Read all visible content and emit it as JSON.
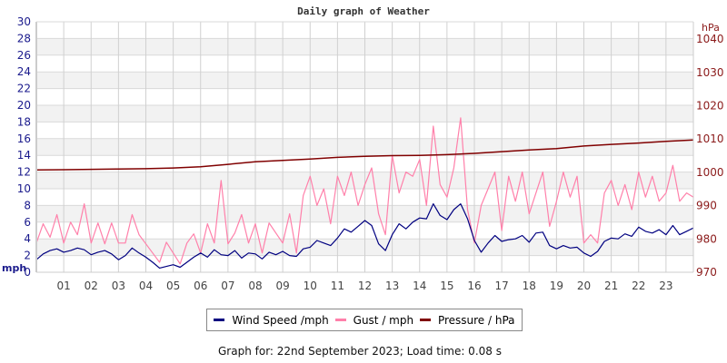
{
  "chart_data": {
    "type": "line",
    "title": "Daily graph of Weather",
    "xlabel": "",
    "ylabel": "mph",
    "ylabel_right": "hPa",
    "x_ticks": [
      "01",
      "02",
      "03",
      "04",
      "05",
      "06",
      "07",
      "08",
      "09",
      "10",
      "11",
      "12",
      "13",
      "14",
      "15",
      "16",
      "17",
      "18",
      "19",
      "20",
      "21",
      "22",
      "23"
    ],
    "y_ticks_left": [
      0,
      2,
      4,
      6,
      8,
      10,
      12,
      14,
      16,
      18,
      20,
      22,
      24,
      26,
      28,
      30
    ],
    "y_ticks_right": [
      970,
      980,
      990,
      1000,
      1010,
      1020,
      1030,
      1040
    ],
    "ylim": [
      0,
      30
    ],
    "ylim_right": [
      970,
      1040
    ],
    "xlim_hours": [
      0,
      24
    ],
    "grid": true,
    "legend_position": "bottom",
    "series": [
      {
        "name": "Wind Speed /mph",
        "color": "#000080",
        "axis": "left",
        "hours": [
          0,
          0.25,
          0.5,
          0.75,
          1,
          1.25,
          1.5,
          1.75,
          2,
          2.25,
          2.5,
          2.75,
          3,
          3.25,
          3.5,
          3.75,
          4,
          4.25,
          4.5,
          4.75,
          5,
          5.25,
          5.5,
          5.75,
          6,
          6.25,
          6.5,
          6.75,
          7,
          7.25,
          7.5,
          7.75,
          8,
          8.25,
          8.5,
          8.75,
          9,
          9.25,
          9.5,
          9.75,
          10,
          10.25,
          10.5,
          10.75,
          11,
          11.25,
          11.5,
          11.75,
          12,
          12.25,
          12.5,
          12.75,
          13,
          13.25,
          13.5,
          13.75,
          14,
          14.25,
          14.5,
          14.75,
          15,
          15.25,
          15.5,
          15.75,
          16,
          16.25,
          16.5,
          16.75,
          17,
          17.25,
          17.5,
          17.75,
          18,
          18.25,
          18.5,
          18.75,
          19,
          19.25,
          19.5,
          19.75,
          20,
          20.25,
          20.5,
          20.75,
          21,
          21.25,
          21.5,
          21.75,
          22,
          22.25,
          22.5,
          22.75,
          23,
          23.25,
          23.5,
          23.75,
          24
        ],
        "values": [
          1.5,
          2.2,
          2.6,
          2.8,
          2.4,
          2.6,
          2.9,
          2.7,
          2.1,
          2.4,
          2.6,
          2.2,
          1.5,
          2.0,
          2.9,
          2.3,
          1.8,
          1.2,
          0.5,
          0.7,
          0.9,
          0.6,
          1.2,
          1.8,
          2.3,
          1.8,
          2.7,
          2.1,
          2.0,
          2.6,
          1.7,
          2.3,
          2.2,
          1.6,
          2.4,
          2.1,
          2.5,
          2.0,
          1.9,
          2.8,
          3.0,
          3.8,
          3.5,
          3.2,
          4.1,
          5.2,
          4.8,
          5.5,
          6.2,
          5.6,
          3.4,
          2.6,
          4.5,
          5.8,
          5.2,
          6.0,
          6.5,
          6.4,
          8.2,
          6.8,
          6.3,
          7.5,
          8.2,
          6.4,
          3.8,
          2.4,
          3.5,
          4.4,
          3.7,
          3.9,
          4.0,
          4.4,
          3.6,
          4.7,
          4.8,
          3.2,
          2.8,
          3.2,
          2.9,
          3.0,
          2.3,
          1.9,
          2.5,
          3.7,
          4.1,
          4.0,
          4.6,
          4.3,
          5.4,
          4.9,
          4.7,
          5.1,
          4.5,
          5.6,
          4.5,
          4.9,
          5.3
        ]
      },
      {
        "name": "Gust / mph",
        "color": "#ff80aa",
        "axis": "left",
        "hours": [
          0,
          0.25,
          0.5,
          0.75,
          1,
          1.25,
          1.5,
          1.75,
          2,
          2.25,
          2.5,
          2.75,
          3,
          3.25,
          3.5,
          3.75,
          4,
          4.25,
          4.5,
          4.75,
          5,
          5.25,
          5.5,
          5.75,
          6,
          6.25,
          6.5,
          6.75,
          7,
          7.25,
          7.5,
          7.75,
          8,
          8.25,
          8.5,
          8.75,
          9,
          9.25,
          9.5,
          9.75,
          10,
          10.25,
          10.5,
          10.75,
          11,
          11.25,
          11.5,
          11.75,
          12,
          12.25,
          12.5,
          12.75,
          13,
          13.25,
          13.5,
          13.75,
          14,
          14.25,
          14.5,
          14.75,
          15,
          15.25,
          15.5,
          15.75,
          16,
          16.25,
          16.5,
          16.75,
          17,
          17.25,
          17.5,
          17.75,
          18,
          18.25,
          18.5,
          18.75,
          19,
          19.25,
          19.5,
          19.75,
          20,
          20.25,
          20.5,
          20.75,
          21,
          21.25,
          21.5,
          21.75,
          22,
          22.25,
          22.5,
          22.75,
          23,
          23.25,
          23.5,
          23.75,
          24
        ],
        "values": [
          3.5,
          5.8,
          4.2,
          6.9,
          3.5,
          6.0,
          4.5,
          8.2,
          3.5,
          5.9,
          3.4,
          5.9,
          3.5,
          3.5,
          6.9,
          4.5,
          3.4,
          2.3,
          1.2,
          3.6,
          2.3,
          1.0,
          3.5,
          4.6,
          2.3,
          5.8,
          3.5,
          11.0,
          3.4,
          4.7,
          6.9,
          3.5,
          5.8,
          2.3,
          5.9,
          4.7,
          3.5,
          7.0,
          2.3,
          9.2,
          11.5,
          8.0,
          10.0,
          5.8,
          11.5,
          9.2,
          12.0,
          8.0,
          10.5,
          12.5,
          7.0,
          4.5,
          14.0,
          9.5,
          12.0,
          11.5,
          13.5,
          8.0,
          17.5,
          10.5,
          9.0,
          12.5,
          18.5,
          7.5,
          3.5,
          8.0,
          10.0,
          12.0,
          5.0,
          11.5,
          8.5,
          12.0,
          7.0,
          9.5,
          12.0,
          5.5,
          8.5,
          12.0,
          9.0,
          11.5,
          3.5,
          4.5,
          3.5,
          9.5,
          11.0,
          8.0,
          10.5,
          7.5,
          12.0,
          9.0,
          11.5,
          8.5,
          9.5,
          12.8,
          8.5,
          9.5,
          9.0
        ]
      },
      {
        "name": "Pressure / hPa",
        "color": "#800000",
        "axis": "right",
        "hours": [
          0,
          1,
          2,
          3,
          4,
          5,
          6,
          7,
          8,
          9,
          10,
          11,
          12,
          13,
          14,
          15,
          16,
          17,
          18,
          19,
          20,
          21,
          22,
          23,
          24
        ],
        "values": [
          1000.7,
          1000.8,
          1000.9,
          1001.0,
          1001.1,
          1001.3,
          1001.7,
          1002.4,
          1003.2,
          1003.6,
          1004.0,
          1004.5,
          1004.8,
          1005.0,
          1005.1,
          1005.3,
          1005.7,
          1006.2,
          1006.7,
          1007.1,
          1007.9,
          1008.4,
          1008.8,
          1009.3,
          1009.7
        ]
      }
    ]
  },
  "legend": {
    "items": [
      {
        "label": "Wind Speed /mph",
        "color": "#000080"
      },
      {
        "label": "Gust / mph",
        "color": "#ff80aa"
      },
      {
        "label": "Pressure / hPa",
        "color": "#800000"
      }
    ]
  },
  "footer": {
    "text": "Graph for: 22nd September 2023; Load time: 0.08 s"
  }
}
